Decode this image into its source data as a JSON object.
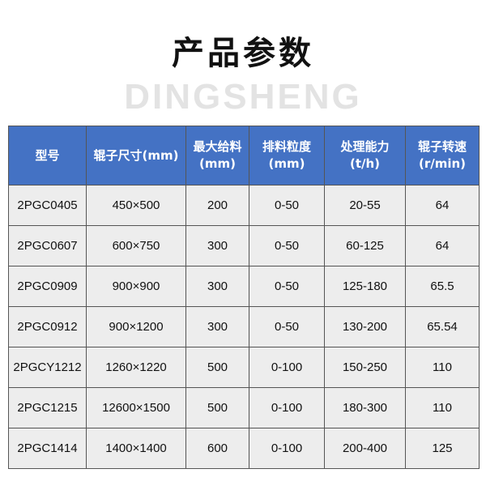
{
  "title": "产品参数",
  "watermark": "DINGSHENG",
  "table": {
    "headers": [
      [
        "型号",
        ""
      ],
      [
        "辊子尺寸(mm)",
        ""
      ],
      [
        "最大给料",
        "(mm)"
      ],
      [
        "排料粒度",
        "(mm)"
      ],
      [
        "处理能力",
        "(t/h)"
      ],
      [
        "辊子转速",
        "(r/min)"
      ]
    ],
    "rows": [
      [
        "2PGC0405",
        "450×500",
        "200",
        "0-50",
        "20-55",
        "64"
      ],
      [
        "2PGC0607",
        "600×750",
        "300",
        "0-50",
        "60-125",
        "64"
      ],
      [
        "2PGC0909",
        "900×900",
        "300",
        "0-50",
        "125-180",
        "65.5"
      ],
      [
        "2PGC0912",
        "900×1200",
        "300",
        "0-50",
        "130-200",
        "65.54"
      ],
      [
        "2PGCY1212",
        "1260×1220",
        "500",
        "0-100",
        "150-250",
        "110"
      ],
      [
        "2PGC1215",
        "12600×1500",
        "500",
        "0-100",
        "180-300",
        "110"
      ],
      [
        "2PGC1414",
        "1400×1400",
        "600",
        "0-100",
        "200-400",
        "125"
      ]
    ]
  },
  "colors": {
    "header_bg": "#4472c4",
    "cell_bg": "#ededed"
  }
}
